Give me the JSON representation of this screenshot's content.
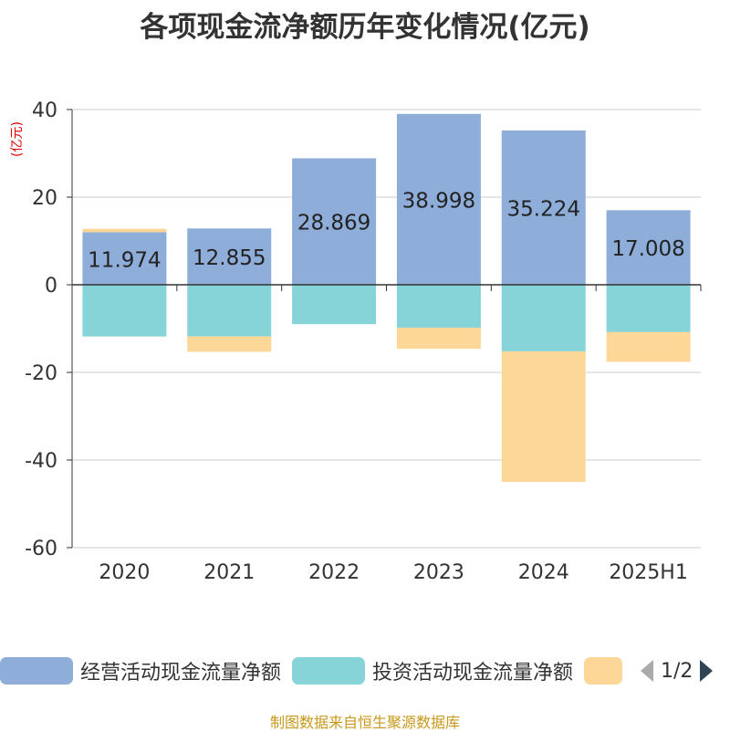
{
  "title": "各项现金流净额历年变化情况(亿元)",
  "unit_label": "(亿元)",
  "legend": {
    "items": [
      {
        "label": "经营活动现金流量净额",
        "color": "#8eadd9"
      },
      {
        "label": "投资活动现金流量净额",
        "color": "#87d4d8"
      },
      {
        "label": "",
        "color": "#fdd798"
      }
    ],
    "page": "1/2"
  },
  "footer": "制图数据来自恒生聚源数据库",
  "chart_data": {
    "type": "bar",
    "stacked": true,
    "categories": [
      "2020",
      "2021",
      "2022",
      "2023",
      "2024",
      "2025H1"
    ],
    "series": [
      {
        "name": "经营活动现金流量净额",
        "color": "#8eadd9",
        "values": [
          11.974,
          12.855,
          28.869,
          38.998,
          35.224,
          17.008
        ],
        "show_labels": true
      },
      {
        "name": "投资活动现金流量净额",
        "color": "#87d4d8",
        "values": [
          -11.8,
          -11.8,
          -9.0,
          -9.8,
          -15.2,
          -10.8
        ],
        "show_labels": false
      },
      {
        "name": "",
        "color": "#fdd798",
        "values": [
          0.8,
          -3.5,
          0.0,
          -4.8,
          -29.8,
          -6.8
        ],
        "show_labels": false
      }
    ],
    "ylim": [
      -60,
      40
    ],
    "yticks": [
      40,
      20,
      0,
      -20,
      -40,
      -60
    ],
    "grid": true
  }
}
